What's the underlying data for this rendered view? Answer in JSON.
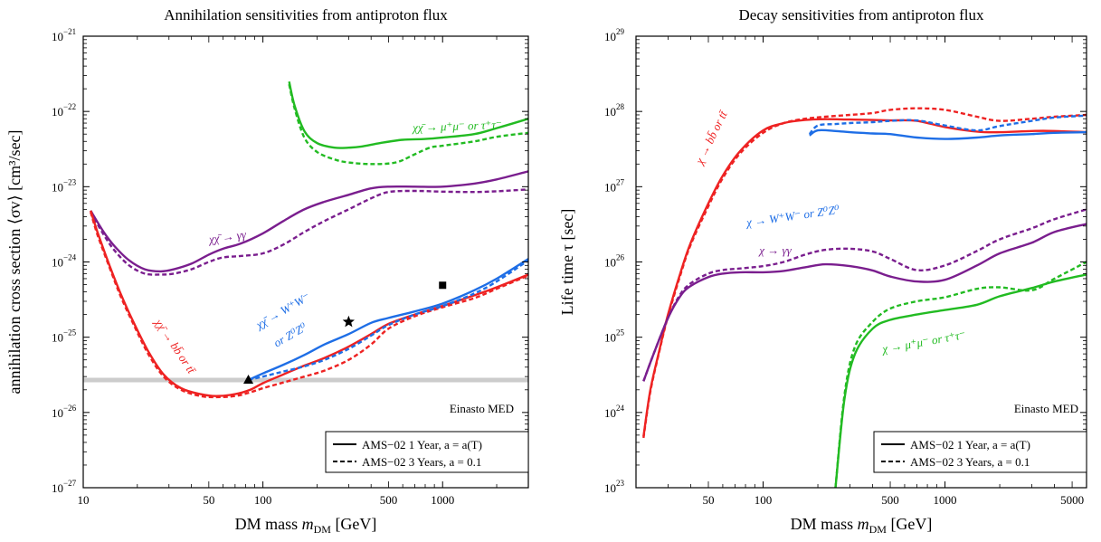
{
  "chart_data": [
    {
      "type": "line",
      "title": "Annihilation sensitivities from antiproton flux",
      "xlabel": "DM mass m_DM [GeV]",
      "ylabel": "annihilation cross section ⟨σv⟩ [cm³/sec]",
      "xscale": "log",
      "yscale": "log",
      "xlim": [
        10,
        3000
      ],
      "ylim": [
        1e-27,
        1e-21
      ],
      "xticks": [
        10,
        50,
        100,
        500,
        1000
      ],
      "yticks": [
        1e-27,
        1e-26,
        1e-25,
        1e-24,
        1e-23,
        1e-22,
        1e-21
      ],
      "yticklabels": [
        "10",
        "10",
        "10",
        "10",
        "10",
        "10",
        "10"
      ],
      "yticklabels_exp": [
        "−27",
        "−26",
        "−25",
        "−24",
        "−23",
        "−22",
        "−21"
      ],
      "halo_label": "Einasto MED",
      "legend": {
        "placement": "bottom-right",
        "entries": [
          {
            "style": "solid",
            "label": "AMS−02 1 Year, a = a(T)"
          },
          {
            "style": "dashed",
            "label": "AMS−02 3 Years, a = 0.1"
          }
        ]
      },
      "hline": {
        "y": 2.7e-26,
        "color": "#cccccc"
      },
      "markers": [
        {
          "shape": "triangle",
          "x": 83,
          "y": 2.7e-26
        },
        {
          "shape": "star",
          "x": 300,
          "y": 1.6e-25
        },
        {
          "shape": "square",
          "x": 1000,
          "y": 4.9e-25
        }
      ],
      "colors": {
        "bb": "#ee2222",
        "ww": "#1e6ee6",
        "gg": "#7a1e8e",
        "ll": "#22bb22"
      },
      "annotations": {
        "ll": "χχ̄ → μ⁺μ⁻ or τ⁺τ⁻",
        "gg": "χχ̄ → γγ",
        "ww1": "χχ̄ → W⁺W⁻",
        "ww2": "or Z⁰Z⁰",
        "bb": "χχ̄ → bb̄ or tt̄"
      },
      "series": [
        {
          "key": "ll",
          "style": "solid",
          "x": [
            140,
            150,
            170,
            200,
            250,
            300,
            350,
            450,
            600,
            800,
            1000,
            1500,
            2000,
            3000
          ],
          "y": [
            2.5e-22,
            1.2e-22,
            5.5e-23,
            3.8e-23,
            3.3e-23,
            3.3e-23,
            3.4e-23,
            3.8e-23,
            4.2e-23,
            4.3e-23,
            4.5e-23,
            5e-23,
            6e-23,
            8e-23
          ]
        },
        {
          "key": "ll",
          "style": "dashed",
          "x": [
            140,
            150,
            170,
            200,
            250,
            300,
            400,
            550,
            700,
            850,
            1000,
            1500,
            2000,
            3000
          ],
          "y": [
            2.3e-22,
            1.1e-22,
            4.5e-23,
            2.9e-23,
            2.3e-23,
            2.1e-23,
            2e-23,
            2.1e-23,
            2.7e-23,
            3.3e-23,
            3.5e-23,
            4e-23,
            4.6e-23,
            5.2e-23
          ]
        },
        {
          "key": "gg",
          "style": "solid",
          "x": [
            11,
            13,
            15,
            18,
            22,
            27,
            32,
            40,
            50,
            60,
            75,
            100,
            130,
            170,
            220,
            300,
            400,
            500,
            700,
            1000,
            1500,
            2000,
            3000
          ],
          "y": [
            4.8e-24,
            2.5e-24,
            1.6e-24,
            1.05e-24,
            8e-25,
            7.5e-25,
            8e-25,
            9.5e-25,
            1.25e-24,
            1.5e-24,
            1.75e-24,
            2.4e-24,
            3.5e-24,
            5e-24,
            6.3e-24,
            7.8e-24,
            9.5e-24,
            1e-23,
            1e-23,
            1e-23,
            1.1e-23,
            1.25e-23,
            1.6e-23
          ]
        },
        {
          "key": "gg",
          "style": "dashed",
          "x": [
            11,
            13,
            15,
            18,
            22,
            27,
            32,
            40,
            50,
            60,
            75,
            100,
            130,
            170,
            220,
            300,
            400,
            500,
            700,
            1000,
            1500,
            2000,
            3000
          ],
          "y": [
            4.6e-24,
            2.3e-24,
            1.4e-24,
            9e-25,
            7e-25,
            6.8e-25,
            7e-25,
            8e-25,
            1e-24,
            1.15e-24,
            1.2e-24,
            1.3e-24,
            1.7e-24,
            2.5e-24,
            3.5e-24,
            5e-24,
            7e-24,
            8.5e-24,
            8.8e-24,
            8.6e-24,
            8.5e-24,
            8.7e-24,
            9.2e-24
          ]
        },
        {
          "key": "bb",
          "style": "solid",
          "x": [
            11,
            12,
            14,
            16,
            19,
            23,
            28,
            35,
            45,
            55,
            70,
            85,
            100,
            130,
            170,
            220,
            300,
            400,
            500,
            700,
            1000,
            1500,
            2000,
            3000
          ],
          "y": [
            4.8e-24,
            2.5e-24,
            9e-25,
            4e-25,
            1.6e-25,
            6.5e-26,
            3.2e-26,
            2.1e-26,
            1.75e-26,
            1.65e-26,
            1.75e-26,
            2e-26,
            2.45e-26,
            3.2e-26,
            4.2e-26,
            5.3e-26,
            7.5e-26,
            1.1e-25,
            1.5e-25,
            2e-25,
            2.6e-25,
            3.6e-25,
            4.6e-25,
            6.8e-25
          ]
        },
        {
          "key": "bb",
          "style": "dashed",
          "x": [
            11,
            12,
            14,
            16,
            19,
            23,
            28,
            35,
            45,
            55,
            70,
            85,
            100,
            130,
            170,
            220,
            300,
            400,
            500,
            700,
            1000,
            1500,
            2000,
            3000
          ],
          "y": [
            4.6e-24,
            2.3e-24,
            8.5e-25,
            3.7e-25,
            1.5e-25,
            6e-26,
            3e-26,
            2e-26,
            1.65e-26,
            1.6e-26,
            1.65e-26,
            1.85e-26,
            2.1e-26,
            2.5e-26,
            3e-26,
            3.6e-26,
            5e-26,
            8e-26,
            1.3e-25,
            1.9e-25,
            2.5e-25,
            3.3e-25,
            4.4e-25,
            6.6e-25
          ]
        },
        {
          "key": "ww",
          "style": "solid",
          "x": [
            83,
            100,
            130,
            170,
            220,
            300,
            400,
            500,
            700,
            1000,
            1500,
            2000,
            3000
          ],
          "y": [
            2.7e-26,
            3.3e-26,
            4.3e-26,
            5.8e-26,
            8e-26,
            1.1e-25,
            1.55e-25,
            1.8e-25,
            2.2e-25,
            2.8e-25,
            4.2e-25,
            6e-25,
            1.1e-24
          ]
        },
        {
          "key": "ww",
          "style": "dashed",
          "x": [
            83,
            100,
            130,
            170,
            220,
            300,
            400,
            500,
            700,
            1000,
            1500,
            2000,
            3000
          ],
          "y": [
            2.7e-26,
            3e-26,
            3.5e-26,
            4.1e-26,
            5e-26,
            7e-26,
            1.05e-25,
            1.45e-25,
            2e-25,
            2.6e-25,
            3.8e-25,
            5.5e-25,
            1.05e-24
          ]
        }
      ]
    },
    {
      "type": "line",
      "title": "Decay sensitivities from antiproton flux",
      "xlabel": "DM mass m_DM [GeV]",
      "ylabel": "Life time τ [sec]",
      "xscale": "log",
      "yscale": "log",
      "xlim": [
        20,
        6000
      ],
      "ylim": [
        1e+23,
        1e+29
      ],
      "xticks": [
        50,
        100,
        500,
        1000,
        5000
      ],
      "yticks": [
        1e+23,
        1e+24,
        1e+25,
        1e+26,
        1e+27,
        1e+28,
        1e+29
      ],
      "yticklabels": [
        "10",
        "10",
        "10",
        "10",
        "10",
        "10",
        "10"
      ],
      "yticklabels_exp": [
        "23",
        "24",
        "25",
        "26",
        "27",
        "28",
        "29"
      ],
      "halo_label": "Einasto MED",
      "legend": {
        "placement": "bottom-right",
        "entries": [
          {
            "style": "solid",
            "label": "AMS−02 1 Year, a = a(T)"
          },
          {
            "style": "dashed",
            "label": "AMS−02 3 Years, a = 0.1"
          }
        ]
      },
      "colors": {
        "bb": "#ee2222",
        "ww": "#1e6ee6",
        "gg": "#7a1e8e",
        "ll": "#22bb22"
      },
      "annotations": {
        "bb": "χ → bb̄ or tt̄",
        "ww": "χ → W⁺W⁻ or Z⁰Z⁰",
        "gg": "χ → γγ",
        "ll": "χ → μ⁺μ⁻ or τ⁺τ⁻"
      },
      "series": [
        {
          "key": "bb",
          "style": "solid",
          "x": [
            22,
            24,
            27,
            30,
            35,
            40,
            50,
            60,
            75,
            100,
            130,
            170,
            220,
            300,
            400,
            500,
            700,
            1000,
            1500,
            2000,
            3000,
            4000,
            6000
          ],
          "y": [
            4.8e+23,
            2e+24,
            7e+24,
            2e+25,
            7e+25,
            1.8e+26,
            6e+26,
            1.4e+27,
            3e+27,
            5.6e+27,
            7e+27,
            7.7e+27,
            7.9e+27,
            7.8e+27,
            7.7e+27,
            7.6e+27,
            7.5e+27,
            6.2e+27,
            5.4e+27,
            5.3e+27,
            5.5e+27,
            5.5e+27,
            5.3e+27
          ]
        },
        {
          "key": "bb",
          "style": "dashed",
          "x": [
            22,
            24,
            27,
            30,
            35,
            40,
            50,
            60,
            75,
            100,
            130,
            170,
            220,
            300,
            400,
            500,
            700,
            1000,
            1500,
            2000,
            3000,
            4000,
            6000
          ],
          "y": [
            4.6e+23,
            1.9e+24,
            6.8e+24,
            1.9e+25,
            6.6e+25,
            1.7e+26,
            5.5e+26,
            1.3e+27,
            2.8e+27,
            5.2e+27,
            7e+27,
            8e+27,
            8.5e+27,
            9e+27,
            9.5e+27,
            1.05e+28,
            1.1e+28,
            1.05e+28,
            8.5e+27,
            7.5e+27,
            8e+27,
            8.5e+27,
            9e+27
          ]
        },
        {
          "key": "ww",
          "style": "solid",
          "x": [
            180,
            200,
            250,
            300,
            400,
            500,
            700,
            1000,
            1500,
            2000,
            3000,
            4000,
            6000
          ],
          "y": [
            4.8e+27,
            5.6e+27,
            5.5e+27,
            5.3e+27,
            5.1e+27,
            5e+27,
            4.5e+27,
            4.3e+27,
            4.5e+27,
            4.8e+27,
            5e+27,
            5.2e+27,
            5.3e+27
          ]
        },
        {
          "key": "ww",
          "style": "dashed",
          "x": [
            180,
            200,
            250,
            300,
            400,
            500,
            700,
            1000,
            1500,
            2000,
            3000,
            4000,
            6000
          ],
          "y": [
            5e+27,
            6.5e+27,
            6.8e+27,
            7e+27,
            7.2e+27,
            7.5e+27,
            7.6e+27,
            6.5e+27,
            5.6e+27,
            6.4e+27,
            7.5e+27,
            8.3e+27,
            8.8e+27
          ]
        },
        {
          "key": "gg",
          "style": "solid",
          "x": [
            22,
            25,
            30,
            35,
            40,
            50,
            60,
            75,
            100,
            130,
            170,
            220,
            300,
            400,
            500,
            700,
            1000,
            1500,
            2000,
            3000,
            4000,
            6000
          ],
          "y": [
            2.6e+24,
            6e+24,
            1.8e+25,
            3.5e+25,
            4.8e+25,
            6.3e+25,
            7e+25,
            7.3e+25,
            7.3e+25,
            7.6e+25,
            8.5e+25,
            9.3e+25,
            8.8e+25,
            7.7e+25,
            6.4e+25,
            5.5e+25,
            5.8e+25,
            9e+25,
            1.3e+26,
            1.8e+26,
            2.5e+26,
            3.2e+26
          ]
        },
        {
          "key": "gg",
          "style": "dashed",
          "x": [
            22,
            25,
            30,
            35,
            40,
            50,
            60,
            75,
            100,
            130,
            170,
            220,
            300,
            400,
            500,
            700,
            1000,
            1500,
            2000,
            3000,
            4000,
            6000
          ],
          "y": [
            2.6e+24,
            6e+24,
            1.8e+25,
            3.7e+25,
            5.2e+25,
            7e+25,
            7.8e+25,
            8.2e+25,
            8.8e+25,
            1e+26,
            1.25e+26,
            1.45e+26,
            1.5e+26,
            1.38e+26,
            1.1e+26,
            7.8e+25,
            9e+25,
            1.4e+26,
            2e+26,
            2.8e+26,
            3.7e+26,
            5e+26
          ]
        },
        {
          "key": "ll",
          "style": "solid",
          "x": [
            250,
            280,
            320,
            400,
            500,
            700,
            1000,
            1500,
            2000,
            3000,
            4000,
            6000
          ],
          "y": [
            1e+23,
            1.5e+24,
            6e+24,
            1.3e+25,
            1.7e+25,
            2e+25,
            2.3e+25,
            2.7e+25,
            3.5e+25,
            4.5e+25,
            5.5e+25,
            6.8e+25
          ]
        },
        {
          "key": "ll",
          "style": "dashed",
          "x": [
            250,
            280,
            320,
            400,
            500,
            700,
            1000,
            1500,
            2000,
            3000,
            4000,
            6000
          ],
          "y": [
            1e+23,
            1.7e+24,
            7.5e+24,
            1.6e+25,
            2.4e+25,
            3e+25,
            3.4e+25,
            4.4e+25,
            4.6e+25,
            4.2e+25,
            6e+25,
            1e+26
          ]
        }
      ]
    }
  ]
}
